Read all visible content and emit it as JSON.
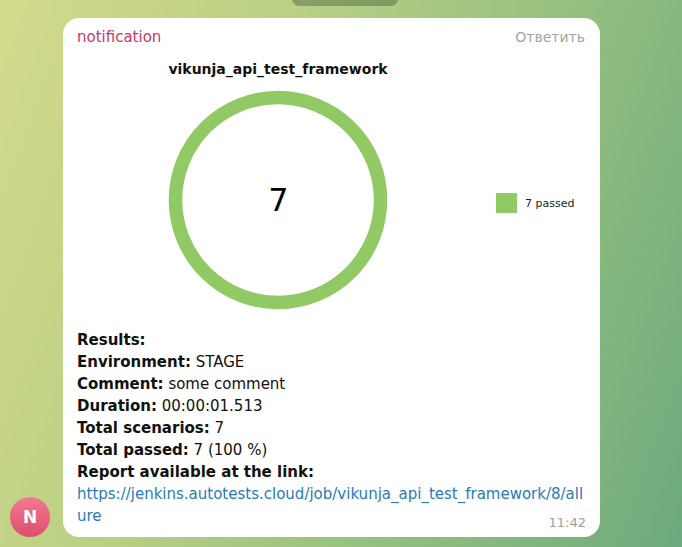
{
  "header": {
    "sender": "notification",
    "reply": "Ответить"
  },
  "chart_data": {
    "type": "donut",
    "title": "vikunja_api_test_framework",
    "categories": [
      "passed"
    ],
    "values": [
      7
    ],
    "colors": [
      "#91c964"
    ],
    "total": 7,
    "legend": "right",
    "legend_labels": [
      "7 passed"
    ]
  },
  "results": {
    "heading": "Results:",
    "rows": [
      {
        "label": "Environment:",
        "value": "STAGE"
      },
      {
        "label": "Comment:",
        "value": "some comment"
      },
      {
        "label": "Duration:",
        "value": "00:00:01.513"
      },
      {
        "label": "Total scenarios:",
        "value": "7"
      },
      {
        "label": "Total passed:",
        "value": "7 (100 %)"
      }
    ],
    "link_label": "Report available at the link:",
    "link": "https://jenkins.autotests.cloud/job/vikunja_api_test_framework/8/allure"
  },
  "time": "11:42",
  "avatar": "N"
}
